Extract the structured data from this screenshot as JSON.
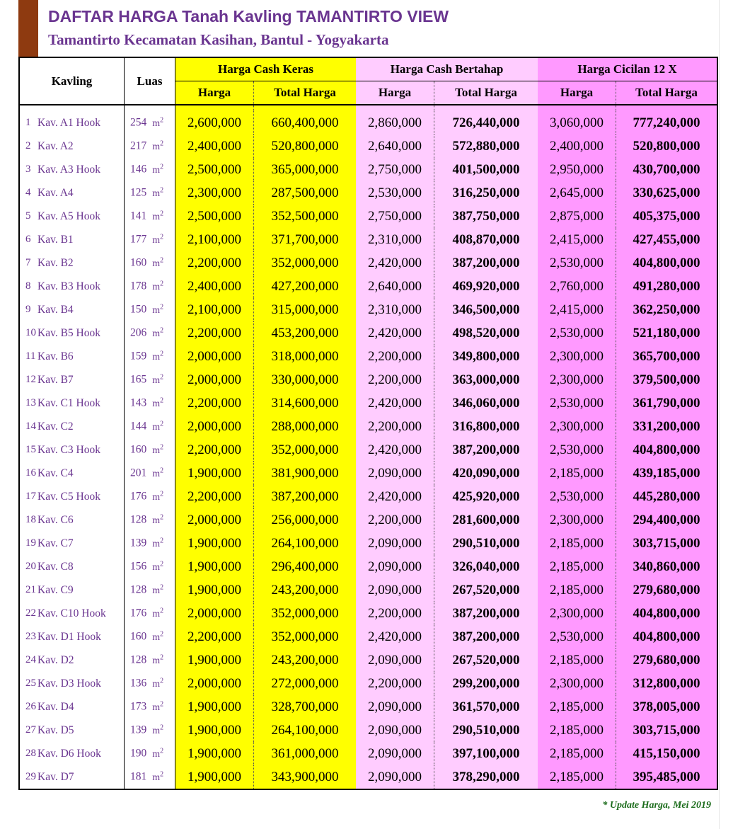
{
  "header": {
    "title": "DAFTAR HARGA Tanah Kavling TAMANTIRTO VIEW",
    "subtitle": "Tamantirto Kecamatan Kasihan, Bantul - Yogyakarta"
  },
  "colors": {
    "accent_bar": "#8e3a10",
    "title": "#6a3590",
    "cash_keras": "#ffff00",
    "cash_bertahap": "#ffccff",
    "cicilan": "#ff99ff",
    "footnote": "#1a6b1a"
  },
  "table": {
    "headers": {
      "kavling": "Kavling",
      "luas": "Luas",
      "cash_keras": "Harga Cash Keras",
      "cash_bertahap": "Harga Cash Bertahap",
      "cicilan": "Harga Cicilan 12 X",
      "harga": "Harga",
      "total_harga": "Total Harga"
    },
    "unit": "m",
    "unit_sup": "2",
    "rows": [
      {
        "no": "1",
        "name": "Kav. A1 Hook",
        "luas": "254",
        "ck_h": "2,600,000",
        "ck_t": "660,400,000",
        "cb_h": "2,860,000",
        "cb_t": "726,440,000",
        "ci_h": "3,060,000",
        "ci_t": "777,240,000"
      },
      {
        "no": "2",
        "name": "Kav. A2",
        "luas": "217",
        "ck_h": "2,400,000",
        "ck_t": "520,800,000",
        "cb_h": "2,640,000",
        "cb_t": "572,880,000",
        "ci_h": "2,400,000",
        "ci_t": "520,800,000"
      },
      {
        "no": "3",
        "name": "Kav. A3 Hook",
        "luas": "146",
        "ck_h": "2,500,000",
        "ck_t": "365,000,000",
        "cb_h": "2,750,000",
        "cb_t": "401,500,000",
        "ci_h": "2,950,000",
        "ci_t": "430,700,000"
      },
      {
        "no": "4",
        "name": "Kav. A4",
        "luas": "125",
        "ck_h": "2,300,000",
        "ck_t": "287,500,000",
        "cb_h": "2,530,000",
        "cb_t": "316,250,000",
        "ci_h": "2,645,000",
        "ci_t": "330,625,000"
      },
      {
        "no": "5",
        "name": "Kav. A5 Hook",
        "luas": "141",
        "ck_h": "2,500,000",
        "ck_t": "352,500,000",
        "cb_h": "2,750,000",
        "cb_t": "387,750,000",
        "ci_h": "2,875,000",
        "ci_t": "405,375,000"
      },
      {
        "no": "6",
        "name": "Kav. B1",
        "luas": "177",
        "ck_h": "2,100,000",
        "ck_t": "371,700,000",
        "cb_h": "2,310,000",
        "cb_t": "408,870,000",
        "ci_h": "2,415,000",
        "ci_t": "427,455,000"
      },
      {
        "no": "7",
        "name": "Kav. B2",
        "luas": "160",
        "ck_h": "2,200,000",
        "ck_t": "352,000,000",
        "cb_h": "2,420,000",
        "cb_t": "387,200,000",
        "ci_h": "2,530,000",
        "ci_t": "404,800,000"
      },
      {
        "no": "8",
        "name": "Kav. B3 Hook",
        "luas": "178",
        "ck_h": "2,400,000",
        "ck_t": "427,200,000",
        "cb_h": "2,640,000",
        "cb_t": "469,920,000",
        "ci_h": "2,760,000",
        "ci_t": "491,280,000"
      },
      {
        "no": "9",
        "name": "Kav. B4",
        "luas": "150",
        "ck_h": "2,100,000",
        "ck_t": "315,000,000",
        "cb_h": "2,310,000",
        "cb_t": "346,500,000",
        "ci_h": "2,415,000",
        "ci_t": "362,250,000"
      },
      {
        "no": "10",
        "name": "Kav. B5 Hook",
        "luas": "206",
        "ck_h": "2,200,000",
        "ck_t": "453,200,000",
        "cb_h": "2,420,000",
        "cb_t": "498,520,000",
        "ci_h": "2,530,000",
        "ci_t": "521,180,000"
      },
      {
        "no": "11",
        "name": "Kav. B6",
        "luas": "159",
        "ck_h": "2,000,000",
        "ck_t": "318,000,000",
        "cb_h": "2,200,000",
        "cb_t": "349,800,000",
        "ci_h": "2,300,000",
        "ci_t": "365,700,000"
      },
      {
        "no": "12",
        "name": "Kav. B7",
        "luas": "165",
        "ck_h": "2,000,000",
        "ck_t": "330,000,000",
        "cb_h": "2,200,000",
        "cb_t": "363,000,000",
        "ci_h": "2,300,000",
        "ci_t": "379,500,000"
      },
      {
        "no": "13",
        "name": "Kav. C1 Hook",
        "luas": "143",
        "ck_h": "2,200,000",
        "ck_t": "314,600,000",
        "cb_h": "2,420,000",
        "cb_t": "346,060,000",
        "ci_h": "2,530,000",
        "ci_t": "361,790,000"
      },
      {
        "no": "14",
        "name": "Kav. C2",
        "luas": "144",
        "ck_h": "2,000,000",
        "ck_t": "288,000,000",
        "cb_h": "2,200,000",
        "cb_t": "316,800,000",
        "ci_h": "2,300,000",
        "ci_t": "331,200,000"
      },
      {
        "no": "15",
        "name": "Kav. C3 Hook",
        "luas": "160",
        "ck_h": "2,200,000",
        "ck_t": "352,000,000",
        "cb_h": "2,420,000",
        "cb_t": "387,200,000",
        "ci_h": "2,530,000",
        "ci_t": "404,800,000"
      },
      {
        "no": "16",
        "name": "Kav. C4",
        "luas": "201",
        "ck_h": "1,900,000",
        "ck_t": "381,900,000",
        "cb_h": "2,090,000",
        "cb_t": "420,090,000",
        "ci_h": "2,185,000",
        "ci_t": "439,185,000"
      },
      {
        "no": "17",
        "name": "Kav. C5 Hook",
        "luas": "176",
        "ck_h": "2,200,000",
        "ck_t": "387,200,000",
        "cb_h": "2,420,000",
        "cb_t": "425,920,000",
        "ci_h": "2,530,000",
        "ci_t": "445,280,000"
      },
      {
        "no": "18",
        "name": "Kav. C6",
        "luas": "128",
        "ck_h": "2,000,000",
        "ck_t": "256,000,000",
        "cb_h": "2,200,000",
        "cb_t": "281,600,000",
        "ci_h": "2,300,000",
        "ci_t": "294,400,000"
      },
      {
        "no": "19",
        "name": "Kav. C7",
        "luas": "139",
        "ck_h": "1,900,000",
        "ck_t": "264,100,000",
        "cb_h": "2,090,000",
        "cb_t": "290,510,000",
        "ci_h": "2,185,000",
        "ci_t": "303,715,000"
      },
      {
        "no": "20",
        "name": "Kav. C8",
        "luas": "156",
        "ck_h": "1,900,000",
        "ck_t": "296,400,000",
        "cb_h": "2,090,000",
        "cb_t": "326,040,000",
        "ci_h": "2,185,000",
        "ci_t": "340,860,000"
      },
      {
        "no": "21",
        "name": "Kav. C9",
        "luas": "128",
        "ck_h": "1,900,000",
        "ck_t": "243,200,000",
        "cb_h": "2,090,000",
        "cb_t": "267,520,000",
        "ci_h": "2,185,000",
        "ci_t": "279,680,000"
      },
      {
        "no": "22",
        "name": "Kav. C10 Hook",
        "luas": "176",
        "ck_h": "2,000,000",
        "ck_t": "352,000,000",
        "cb_h": "2,200,000",
        "cb_t": "387,200,000",
        "ci_h": "2,300,000",
        "ci_t": "404,800,000"
      },
      {
        "no": "23",
        "name": "Kav. D1 Hook",
        "luas": "160",
        "ck_h": "2,200,000",
        "ck_t": "352,000,000",
        "cb_h": "2,420,000",
        "cb_t": "387,200,000",
        "ci_h": "2,530,000",
        "ci_t": "404,800,000"
      },
      {
        "no": "24",
        "name": "Kav. D2",
        "luas": "128",
        "ck_h": "1,900,000",
        "ck_t": "243,200,000",
        "cb_h": "2,090,000",
        "cb_t": "267,520,000",
        "ci_h": "2,185,000",
        "ci_t": "279,680,000"
      },
      {
        "no": "25",
        "name": "Kav. D3 Hook",
        "luas": "136",
        "ck_h": "2,000,000",
        "ck_t": "272,000,000",
        "cb_h": "2,200,000",
        "cb_t": "299,200,000",
        "ci_h": "2,300,000",
        "ci_t": "312,800,000"
      },
      {
        "no": "26",
        "name": "Kav. D4",
        "luas": "173",
        "ck_h": "1,900,000",
        "ck_t": "328,700,000",
        "cb_h": "2,090,000",
        "cb_t": "361,570,000",
        "ci_h": "2,185,000",
        "ci_t": "378,005,000"
      },
      {
        "no": "27",
        "name": "Kav. D5",
        "luas": "139",
        "ck_h": "1,900,000",
        "ck_t": "264,100,000",
        "cb_h": "2,090,000",
        "cb_t": "290,510,000",
        "ci_h": "2,185,000",
        "ci_t": "303,715,000"
      },
      {
        "no": "28",
        "name": "Kav. D6 Hook",
        "luas": "190",
        "ck_h": "1,900,000",
        "ck_t": "361,000,000",
        "cb_h": "2,090,000",
        "cb_t": "397,100,000",
        "ci_h": "2,185,000",
        "ci_t": "415,150,000"
      },
      {
        "no": "29",
        "name": "Kav. D7",
        "luas": "181",
        "ck_h": "1,900,000",
        "ck_t": "343,900,000",
        "cb_h": "2,090,000",
        "cb_t": "378,290,000",
        "ci_h": "2,185,000",
        "ci_t": "395,485,000"
      }
    ]
  },
  "footnote": "* Update Harga, Mei 2019"
}
